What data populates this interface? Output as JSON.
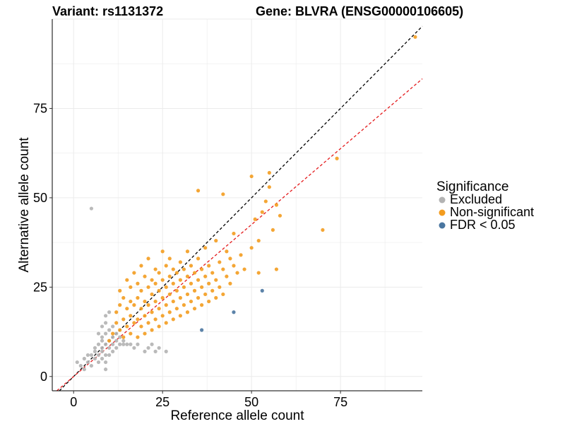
{
  "chart_data": {
    "type": "scatter",
    "title_left": "Variant: rs1131372",
    "title_right": "Gene: BLVRA (ENSG00000106605)",
    "xlabel": "Reference allele count",
    "ylabel": "Alternative allele count",
    "xlim": [
      -6,
      98
    ],
    "ylim": [
      -4,
      100
    ],
    "xticks": [
      0,
      25,
      50,
      75
    ],
    "yticks": [
      0,
      25,
      50,
      75
    ],
    "grid": true,
    "reference_lines": [
      {
        "name": "identity",
        "slope": 1.0,
        "intercept": 0,
        "color": "#000000",
        "dash": true
      },
      {
        "name": "fitted",
        "slope": 0.85,
        "intercept": 0,
        "color": "#e41a1c",
        "dash": true
      }
    ],
    "legend": {
      "title": "Significance",
      "position": "right",
      "entries": [
        {
          "label": "Excluded",
          "color": "#b3b3b3"
        },
        {
          "label": "Non-significant",
          "color": "#f39c1f"
        },
        {
          "label": "FDR < 0.05",
          "color": "#4a76a0"
        }
      ]
    },
    "series": [
      {
        "name": "Excluded",
        "color": "#b3b3b3",
        "points": [
          [
            5,
            47
          ],
          [
            1,
            4
          ],
          [
            2,
            3
          ],
          [
            3,
            2
          ],
          [
            3,
            5
          ],
          [
            4,
            4
          ],
          [
            4,
            6
          ],
          [
            5,
            3
          ],
          [
            5,
            6
          ],
          [
            6,
            5
          ],
          [
            6,
            7
          ],
          [
            6,
            8
          ],
          [
            7,
            4
          ],
          [
            7,
            6
          ],
          [
            7,
            9
          ],
          [
            7,
            12
          ],
          [
            8,
            5
          ],
          [
            8,
            7
          ],
          [
            8,
            8
          ],
          [
            8,
            10
          ],
          [
            8,
            11
          ],
          [
            8,
            14
          ],
          [
            9,
            2
          ],
          [
            9,
            4
          ],
          [
            9,
            6
          ],
          [
            9,
            9
          ],
          [
            9,
            12
          ],
          [
            9,
            15
          ],
          [
            9,
            17
          ],
          [
            10,
            6
          ],
          [
            10,
            8
          ],
          [
            10,
            10
          ],
          [
            10,
            13
          ],
          [
            10,
            18
          ],
          [
            11,
            7
          ],
          [
            11,
            9
          ],
          [
            11,
            11
          ],
          [
            11,
            14
          ],
          [
            12,
            8
          ],
          [
            12,
            10
          ],
          [
            12,
            12
          ],
          [
            13,
            9
          ],
          [
            13,
            11
          ],
          [
            14,
            9
          ],
          [
            14,
            10
          ],
          [
            15,
            9
          ],
          [
            16,
            9
          ],
          [
            17,
            8
          ],
          [
            18,
            9
          ],
          [
            20,
            7
          ],
          [
            21,
            8
          ],
          [
            22,
            9
          ],
          [
            23,
            7
          ],
          [
            24,
            8
          ],
          [
            26,
            7
          ]
        ]
      },
      {
        "name": "Non-significant",
        "color": "#f39c1f",
        "points": [
          [
            10,
            10
          ],
          [
            11,
            12
          ],
          [
            12,
            15
          ],
          [
            12,
            18
          ],
          [
            13,
            13
          ],
          [
            13,
            20
          ],
          [
            13,
            24
          ],
          [
            14,
            11
          ],
          [
            14,
            16
          ],
          [
            14,
            22
          ],
          [
            15,
            14
          ],
          [
            15,
            19
          ],
          [
            15,
            27
          ],
          [
            16,
            12
          ],
          [
            16,
            17
          ],
          [
            16,
            21
          ],
          [
            16,
            25
          ],
          [
            17,
            15
          ],
          [
            17,
            20
          ],
          [
            17,
            29
          ],
          [
            18,
            11
          ],
          [
            18,
            16
          ],
          [
            18,
            22
          ],
          [
            18,
            26
          ],
          [
            19,
            14
          ],
          [
            19,
            19
          ],
          [
            19,
            24
          ],
          [
            19,
            31
          ],
          [
            20,
            12
          ],
          [
            20,
            17
          ],
          [
            20,
            21
          ],
          [
            20,
            28
          ],
          [
            21,
            15
          ],
          [
            21,
            20
          ],
          [
            21,
            25
          ],
          [
            21,
            33
          ],
          [
            22,
            13
          ],
          [
            22,
            18
          ],
          [
            22,
            23
          ],
          [
            22,
            27
          ],
          [
            23,
            16
          ],
          [
            23,
            21
          ],
          [
            23,
            26
          ],
          [
            23,
            30
          ],
          [
            24,
            14
          ],
          [
            24,
            19
          ],
          [
            24,
            24
          ],
          [
            24,
            29
          ],
          [
            25,
            17
          ],
          [
            25,
            22
          ],
          [
            25,
            27
          ],
          [
            25,
            35
          ],
          [
            26,
            15
          ],
          [
            26,
            20
          ],
          [
            26,
            25
          ],
          [
            26,
            31
          ],
          [
            27,
            18
          ],
          [
            27,
            23
          ],
          [
            27,
            28
          ],
          [
            27,
            33
          ],
          [
            28,
            16
          ],
          [
            28,
            21
          ],
          [
            28,
            26
          ],
          [
            28,
            30
          ],
          [
            29,
            19
          ],
          [
            29,
            24
          ],
          [
            29,
            29
          ],
          [
            30,
            17
          ],
          [
            30,
            22
          ],
          [
            30,
            27
          ],
          [
            30,
            32
          ],
          [
            31,
            20
          ],
          [
            31,
            25
          ],
          [
            31,
            30
          ],
          [
            32,
            18
          ],
          [
            32,
            23
          ],
          [
            32,
            28
          ],
          [
            32,
            35
          ],
          [
            33,
            21
          ],
          [
            33,
            26
          ],
          [
            33,
            31
          ],
          [
            34,
            19
          ],
          [
            34,
            24
          ],
          [
            34,
            29
          ],
          [
            35,
            22
          ],
          [
            35,
            27
          ],
          [
            35,
            33
          ],
          [
            36,
            20
          ],
          [
            36,
            25
          ],
          [
            36,
            30
          ],
          [
            37,
            23
          ],
          [
            37,
            28
          ],
          [
            37,
            36
          ],
          [
            38,
            21
          ],
          [
            38,
            26
          ],
          [
            38,
            31
          ],
          [
            39,
            24
          ],
          [
            39,
            29
          ],
          [
            40,
            22
          ],
          [
            40,
            27
          ],
          [
            40,
            38
          ],
          [
            41,
            25
          ],
          [
            41,
            32
          ],
          [
            42,
            23
          ],
          [
            42,
            30
          ],
          [
            43,
            28
          ],
          [
            43,
            35
          ],
          [
            44,
            26
          ],
          [
            44,
            33
          ],
          [
            45,
            31
          ],
          [
            45,
            40
          ],
          [
            46,
            29
          ],
          [
            47,
            34
          ],
          [
            48,
            30
          ],
          [
            50,
            36
          ],
          [
            50,
            56
          ],
          [
            51,
            44
          ],
          [
            52,
            29
          ],
          [
            52,
            38
          ],
          [
            53,
            46
          ],
          [
            54,
            49
          ],
          [
            55,
            57
          ],
          [
            55,
            53
          ],
          [
            56,
            41
          ],
          [
            57,
            48
          ],
          [
            57,
            30
          ],
          [
            58,
            45
          ],
          [
            35,
            52
          ],
          [
            42,
            51
          ],
          [
            70,
            41
          ],
          [
            74,
            61
          ],
          [
            96,
            95
          ]
        ]
      },
      {
        "name": "FDR < 0.05",
        "color": "#4a76a0",
        "points": [
          [
            36,
            13
          ],
          [
            45,
            18
          ],
          [
            53,
            24
          ]
        ]
      }
    ]
  }
}
